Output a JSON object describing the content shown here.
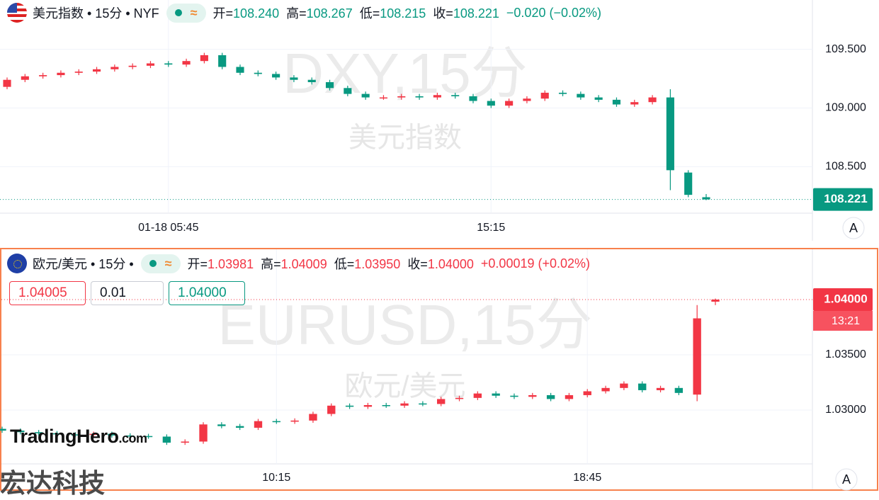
{
  "chart_data": [
    {
      "type": "candlestick",
      "watermark": "DXY,15分",
      "watermark_sub": "美元指数",
      "header": {
        "symbol": "美元指数 • 15分 • NYF",
        "open_label": "开=",
        "open": "108.240",
        "high_label": "高=",
        "high": "108.267",
        "low_label": "低=",
        "low": "108.215",
        "close_label": "收=",
        "close": "108.221",
        "change": "−0.020 (−0.02%)"
      },
      "categories": [
        null,
        null,
        null,
        null,
        null,
        null,
        null,
        null,
        null,
        "01-18 05:45",
        null,
        null,
        null,
        null,
        null,
        null,
        null,
        null,
        null,
        null,
        null,
        null,
        null,
        null,
        null,
        null,
        null,
        "15:15",
        null,
        null,
        null,
        null,
        null,
        null,
        null,
        null,
        null,
        null,
        null,
        null
      ],
      "open": [
        109.18,
        109.24,
        109.27,
        109.28,
        109.3,
        109.31,
        109.33,
        109.35,
        109.36,
        109.38,
        109.37,
        109.4,
        109.45,
        109.35,
        109.3,
        109.29,
        109.26,
        109.24,
        109.22,
        109.17,
        109.12,
        109.09,
        109.09,
        109.1,
        109.09,
        109.11,
        109.1,
        109.06,
        109.02,
        109.06,
        109.08,
        109.13,
        109.12,
        109.09,
        109.07,
        109.03,
        109.05,
        109.09,
        108.45,
        108.24
      ],
      "high": [
        109.26,
        109.29,
        109.3,
        109.32,
        109.33,
        109.35,
        109.37,
        109.38,
        109.4,
        109.4,
        109.42,
        109.47,
        109.47,
        109.37,
        109.32,
        109.31,
        109.28,
        109.26,
        109.24,
        109.19,
        109.14,
        109.11,
        109.12,
        109.12,
        109.13,
        109.13,
        109.12,
        109.08,
        109.08,
        109.1,
        109.15,
        109.15,
        109.14,
        109.11,
        109.09,
        109.07,
        109.11,
        109.16,
        108.47,
        108.267
      ],
      "low": [
        109.16,
        109.22,
        109.25,
        109.26,
        109.28,
        109.29,
        109.31,
        109.33,
        109.34,
        109.35,
        109.35,
        109.38,
        109.33,
        109.28,
        109.27,
        109.24,
        109.22,
        109.2,
        109.15,
        109.1,
        109.07,
        109.07,
        109.07,
        109.07,
        109.07,
        109.08,
        109.04,
        109.0,
        109.0,
        109.04,
        109.06,
        109.1,
        109.07,
        109.05,
        109.01,
        109.01,
        109.03,
        108.3,
        108.24,
        108.215
      ],
      "close": [
        109.24,
        109.27,
        109.28,
        109.3,
        109.31,
        109.33,
        109.35,
        109.36,
        109.38,
        109.37,
        109.4,
        109.45,
        109.35,
        109.3,
        109.29,
        109.26,
        109.24,
        109.22,
        109.17,
        109.12,
        109.09,
        109.09,
        109.1,
        109.09,
        109.11,
        109.1,
        109.06,
        109.02,
        109.06,
        109.08,
        109.13,
        109.12,
        109.09,
        109.07,
        109.03,
        109.05,
        109.09,
        108.47,
        108.26,
        108.221
      ],
      "up_color": "#f23645",
      "down_color": "#089981",
      "ylim": [
        108.11,
        109.92
      ],
      "yticks": [
        {
          "value": 108.5,
          "label": "108.500"
        },
        {
          "value": 109,
          "label": "109.000"
        },
        {
          "value": 109.5,
          "label": "109.500"
        }
      ],
      "last_price": {
        "value": 108.221,
        "label": "108.221"
      },
      "grid": true
    },
    {
      "type": "candlestick",
      "watermark": "EURUSD,15分",
      "watermark_sub": "欧元/美元",
      "header": {
        "symbol": "欧元/美元 • 15分 •",
        "open_label": "开=",
        "open": "1.03981",
        "high_label": "高=",
        "high": "1.04009",
        "low_label": "低=",
        "low": "1.03950",
        "close_label": "收=",
        "close": "1.04000",
        "change": "+0.00019 (+0.02%)"
      },
      "order_boxes": [
        "1.04005",
        "0.01",
        "1.04000"
      ],
      "categories": [
        null,
        null,
        null,
        null,
        null,
        null,
        null,
        null,
        null,
        null,
        null,
        null,
        null,
        null,
        null,
        "10:15",
        null,
        null,
        null,
        null,
        null,
        null,
        null,
        null,
        null,
        null,
        null,
        null,
        null,
        null,
        null,
        null,
        "18:45",
        null,
        null,
        null,
        null,
        null,
        null,
        null
      ],
      "open": [
        1.0283,
        1.02814,
        1.028,
        1.0279,
        1.0278,
        1.02775,
        1.02785,
        1.0277,
        1.02765,
        1.0276,
        1.02705,
        1.02715,
        1.0287,
        1.02855,
        1.0284,
        1.029,
        1.02895,
        1.02905,
        1.02965,
        1.0304,
        1.0303,
        1.03045,
        1.0304,
        1.0306,
        1.03055,
        1.031,
        1.0311,
        1.0315,
        1.0313,
        1.0312,
        1.03135,
        1.031,
        1.03135,
        1.0317,
        1.032,
        1.0324,
        1.0318,
        1.032,
        1.0314,
        1.03981
      ],
      "high": [
        1.0285,
        1.02834,
        1.0282,
        1.0281,
        1.028,
        1.02805,
        1.02805,
        1.0279,
        1.02785,
        1.0278,
        1.02735,
        1.0289,
        1.0289,
        1.02875,
        1.0292,
        1.0292,
        1.02925,
        1.02985,
        1.0306,
        1.0306,
        1.03065,
        1.03065,
        1.0308,
        1.0308,
        1.0312,
        1.0313,
        1.0317,
        1.0317,
        1.0315,
        1.03155,
        1.03155,
        1.03155,
        1.0319,
        1.0322,
        1.0326,
        1.0326,
        1.0322,
        1.0322,
        1.0395,
        1.04009
      ],
      "low": [
        1.02794,
        1.0278,
        1.0277,
        1.0276,
        1.02755,
        1.02755,
        1.0275,
        1.02745,
        1.0274,
        1.02685,
        1.02685,
        1.02695,
        1.02835,
        1.0282,
        1.0282,
        1.02875,
        1.02875,
        1.02885,
        1.02945,
        1.0301,
        1.0301,
        1.0302,
        1.0302,
        1.03035,
        1.03035,
        1.0308,
        1.0309,
        1.0311,
        1.031,
        1.031,
        1.0308,
        1.0308,
        1.03115,
        1.0315,
        1.0318,
        1.0316,
        1.0316,
        1.03135,
        1.0308,
        1.0395
      ],
      "close": [
        1.02814,
        1.028,
        1.0279,
        1.0278,
        1.02775,
        1.02785,
        1.0277,
        1.02765,
        1.0276,
        1.02705,
        1.02715,
        1.0287,
        1.02855,
        1.0284,
        1.029,
        1.02895,
        1.02905,
        1.02965,
        1.0304,
        1.0303,
        1.03045,
        1.0304,
        1.0306,
        1.03055,
        1.031,
        1.0311,
        1.0315,
        1.0313,
        1.0312,
        1.03135,
        1.031,
        1.03135,
        1.0317,
        1.032,
        1.0324,
        1.0318,
        1.032,
        1.03155,
        1.0383,
        1.04
      ],
      "up_color": "#f23645",
      "down_color": "#089981",
      "ylim": [
        1.02513,
        1.04455
      ],
      "yticks": [
        {
          "value": 1.03,
          "label": "1.03000"
        },
        {
          "value": 1.035,
          "label": "1.03500"
        }
      ],
      "last_price": {
        "value": 1.04,
        "label": "1.04000"
      },
      "countdown": "13:21",
      "grid": true
    }
  ],
  "pill_icon": "≈",
  "logo": "TradingHero",
  "logo_suffix": ".com",
  "brand": "宏达科技",
  "scale_button": [
    "A",
    "A"
  ]
}
